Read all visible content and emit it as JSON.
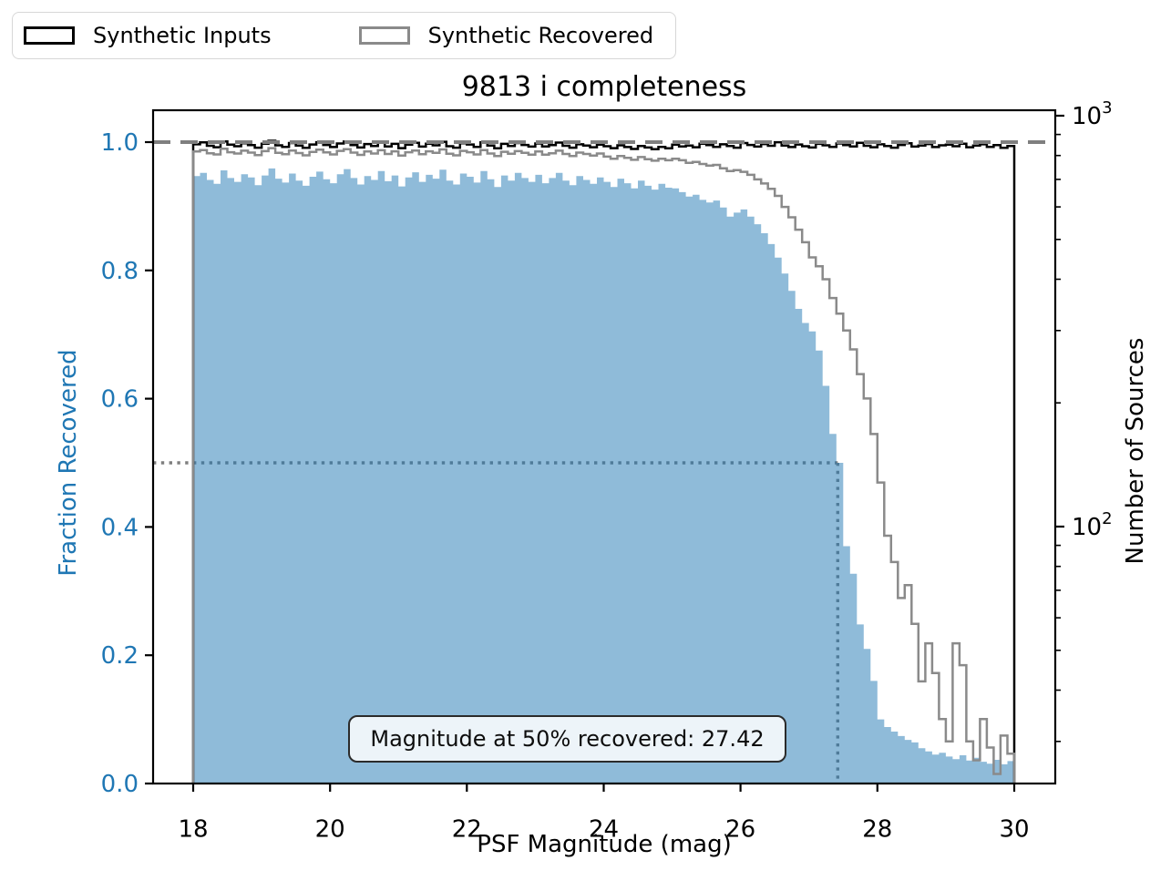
{
  "figure": {
    "title": "9813 i completeness",
    "xlabel": "PSF Magnitude (mag)",
    "ylabel_left": "Fraction Recovered",
    "ylabel_right": "Number of Sources",
    "annotation": "Magnitude at 50% recovered: 27.42",
    "legend": [
      {
        "label": "Synthetic Inputs",
        "edge_color": "#000000"
      },
      {
        "label": "Synthetic Recovered",
        "edge_color": "#8a8a8a"
      }
    ],
    "x_ticks": [
      {
        "value": 18,
        "label": "18"
      },
      {
        "value": 20,
        "label": "20"
      },
      {
        "value": 22,
        "label": "22"
      },
      {
        "value": 24,
        "label": "24"
      },
      {
        "value": 26,
        "label": "26"
      },
      {
        "value": 28,
        "label": "28"
      },
      {
        "value": 30,
        "label": "30"
      }
    ],
    "y_ticks_left": [
      {
        "value": 0.0,
        "label": "0.0"
      },
      {
        "value": 0.2,
        "label": "0.2"
      },
      {
        "value": 0.4,
        "label": "0.4"
      },
      {
        "value": 0.6,
        "label": "0.6"
      },
      {
        "value": 0.8,
        "label": "0.8"
      },
      {
        "value": 1.0,
        "label": "1.0"
      }
    ],
    "y_ticks_right": [
      {
        "value": 100,
        "base": "10",
        "exp": "2"
      },
      {
        "value": 1000,
        "base": "10",
        "exp": "3"
      }
    ],
    "colors": {
      "axis_label_blue": "#1f77b4",
      "fill_blue": "rgba(31,119,180,0.5)",
      "inputs_black": "#000000",
      "recovered_gray": "#8a8a8a",
      "dashed_gray": "#7f7f7f",
      "dotted_gray": "#7f7f7f",
      "spine_black": "#000000"
    }
  },
  "chart_data": {
    "type": "bar",
    "title": "9813 i completeness",
    "xlabel": "PSF Magnitude (mag)",
    "ylabel": "Fraction Recovered",
    "ylabel2": "Number of Sources",
    "bins_start": 18.0,
    "bin_width": 0.1,
    "n_bins": 120,
    "xlim": [
      17.41,
      30.6
    ],
    "ylim_left": [
      0.0,
      1.05
    ],
    "ylim_right": [
      24,
      1030
    ],
    "right_axis_scale": "log10",
    "magnitude_at_50pct_recovered": 27.42,
    "reference_lines": {
      "dashed_fraction": 1.0,
      "dotted_fraction": 0.5,
      "dotted_magnitude": 27.42
    },
    "series": [
      {
        "name": "Fraction Recovered",
        "axis": "left",
        "style": "filled-step",
        "values": [
          0.947,
          0.952,
          0.941,
          0.935,
          0.956,
          0.944,
          0.938,
          0.95,
          0.945,
          0.933,
          0.948,
          0.959,
          0.943,
          0.937,
          0.951,
          0.94,
          0.932,
          0.946,
          0.954,
          0.942,
          0.936,
          0.95,
          0.958,
          0.944,
          0.934,
          0.947,
          0.941,
          0.955,
          0.939,
          0.948,
          0.931,
          0.945,
          0.953,
          0.938,
          0.949,
          0.943,
          0.957,
          0.94,
          0.934,
          0.951,
          0.946,
          0.937,
          0.955,
          0.942,
          0.93,
          0.948,
          0.94,
          0.952,
          0.944,
          0.938,
          0.949,
          0.936,
          0.944,
          0.952,
          0.94,
          0.933,
          0.947,
          0.941,
          0.935,
          0.945,
          0.938,
          0.93,
          0.943,
          0.936,
          0.928,
          0.94,
          0.932,
          0.926,
          0.935,
          0.929,
          0.928,
          0.922,
          0.915,
          0.918,
          0.91,
          0.906,
          0.909,
          0.898,
          0.884,
          0.89,
          0.895,
          0.884,
          0.872,
          0.858,
          0.841,
          0.82,
          0.795,
          0.768,
          0.74,
          0.718,
          0.705,
          0.675,
          0.62,
          0.545,
          0.5,
          0.37,
          0.327,
          0.248,
          0.21,
          0.16,
          0.1,
          0.088,
          0.081,
          0.074,
          0.068,
          0.064,
          0.055,
          0.05,
          0.045,
          0.048,
          0.042,
          0.038,
          0.044,
          0.036,
          0.04,
          0.034,
          0.031,
          0.037,
          0.03,
          0.035
        ]
      },
      {
        "name": "Synthetic Inputs",
        "axis": "right",
        "style": "step",
        "values": [
          852,
          861,
          845,
          838,
          866,
          850,
          843,
          857,
          848,
          836,
          855,
          869,
          847,
          840,
          858,
          846,
          835,
          851,
          862,
          849,
          839,
          856,
          865,
          848,
          837,
          853,
          844,
          860,
          842,
          854,
          834,
          850,
          859,
          841,
          855,
          847,
          864,
          843,
          836,
          857,
          851,
          840,
          861,
          846,
          833,
          854,
          844,
          858,
          849,
          841,
          856,
          842,
          848,
          860,
          845,
          836,
          852,
          846,
          838,
          850,
          843,
          834,
          847,
          839,
          830,
          844,
          837,
          829,
          840,
          833,
          850,
          842,
          846,
          838,
          855,
          848,
          840,
          852,
          844,
          836,
          858,
          849,
          841,
          853,
          845,
          862,
          846,
          839,
          851,
          843,
          837,
          854,
          847,
          840,
          856,
          848,
          842,
          859,
          845,
          838,
          852,
          844,
          836,
          849,
          857,
          841,
          846,
          853,
          839,
          847,
          850,
          843,
          855,
          838,
          846,
          852,
          840,
          848,
          835,
          844
        ]
      },
      {
        "name": "Synthetic Recovered",
        "axis": "right",
        "style": "step",
        "values": [
          818,
          825,
          810,
          805,
          831,
          815,
          809,
          822,
          813,
          802,
          820,
          834,
          812,
          806,
          823,
          811,
          801,
          816,
          827,
          814,
          805,
          821,
          829,
          813,
          803,
          818,
          809,
          824,
          807,
          819,
          800,
          815,
          823,
          806,
          819,
          812,
          828,
          808,
          801,
          821,
          815,
          805,
          825,
          809,
          798,
          817,
          808,
          820,
          812,
          804,
          818,
          804,
          810,
          822,
          807,
          798,
          813,
          807,
          800,
          809,
          795,
          786,
          798,
          790,
          781,
          793,
          784,
          777,
          786,
          779,
          786,
          779,
          768,
          772,
          763,
          756,
          759,
          745,
          733,
          737,
          730,
          718,
          700,
          684,
          664,
          638,
          600,
          566,
          528,
          492,
          452,
          430,
          400,
          360,
          330,
          300,
          270,
          235,
          205,
          168,
          128,
          95,
          82,
          67,
          72,
          58,
          42,
          52,
          44,
          34,
          30,
          52,
          46,
          30,
          27,
          34,
          29,
          25,
          31,
          28
        ]
      }
    ]
  }
}
